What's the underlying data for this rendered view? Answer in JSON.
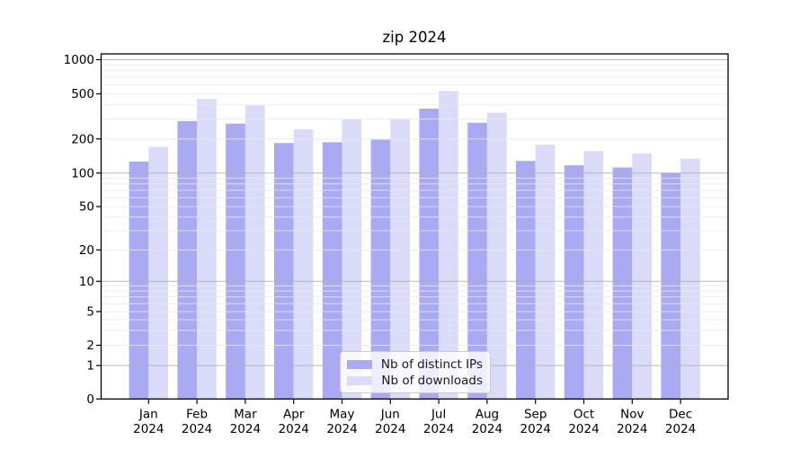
{
  "chart_data": {
    "type": "bar",
    "title": "zip 2024",
    "categories": [
      "Jan",
      "Feb",
      "Mar",
      "Apr",
      "May",
      "Jun",
      "Jul",
      "Aug",
      "Sep",
      "Oct",
      "Nov",
      "Dec"
    ],
    "year": "2024",
    "series": [
      {
        "name": "Nb of distinct IPs",
        "color": "#a9a9f4",
        "values": [
          126,
          287,
          273,
          184,
          187,
          197,
          370,
          278,
          128,
          117,
          112,
          100
        ]
      },
      {
        "name": "Nb of downloads",
        "color": "#dadaf9",
        "values": [
          170,
          450,
          395,
          244,
          298,
          297,
          528,
          340,
          178,
          156,
          149,
          134
        ]
      }
    ],
    "y_axis": {
      "ticks": [
        0,
        1,
        2,
        5,
        10,
        20,
        50,
        100,
        200,
        500,
        1000
      ],
      "scale": "symlog",
      "range": [
        0,
        1150
      ]
    },
    "grid": {
      "major_lines": [
        1,
        10,
        100,
        1000
      ],
      "minor_decades": [
        1,
        10,
        100
      ],
      "major_color": "#b0b0b0",
      "minor_color": "#e9e9e9"
    },
    "legend": {
      "position": "lower center"
    }
  }
}
